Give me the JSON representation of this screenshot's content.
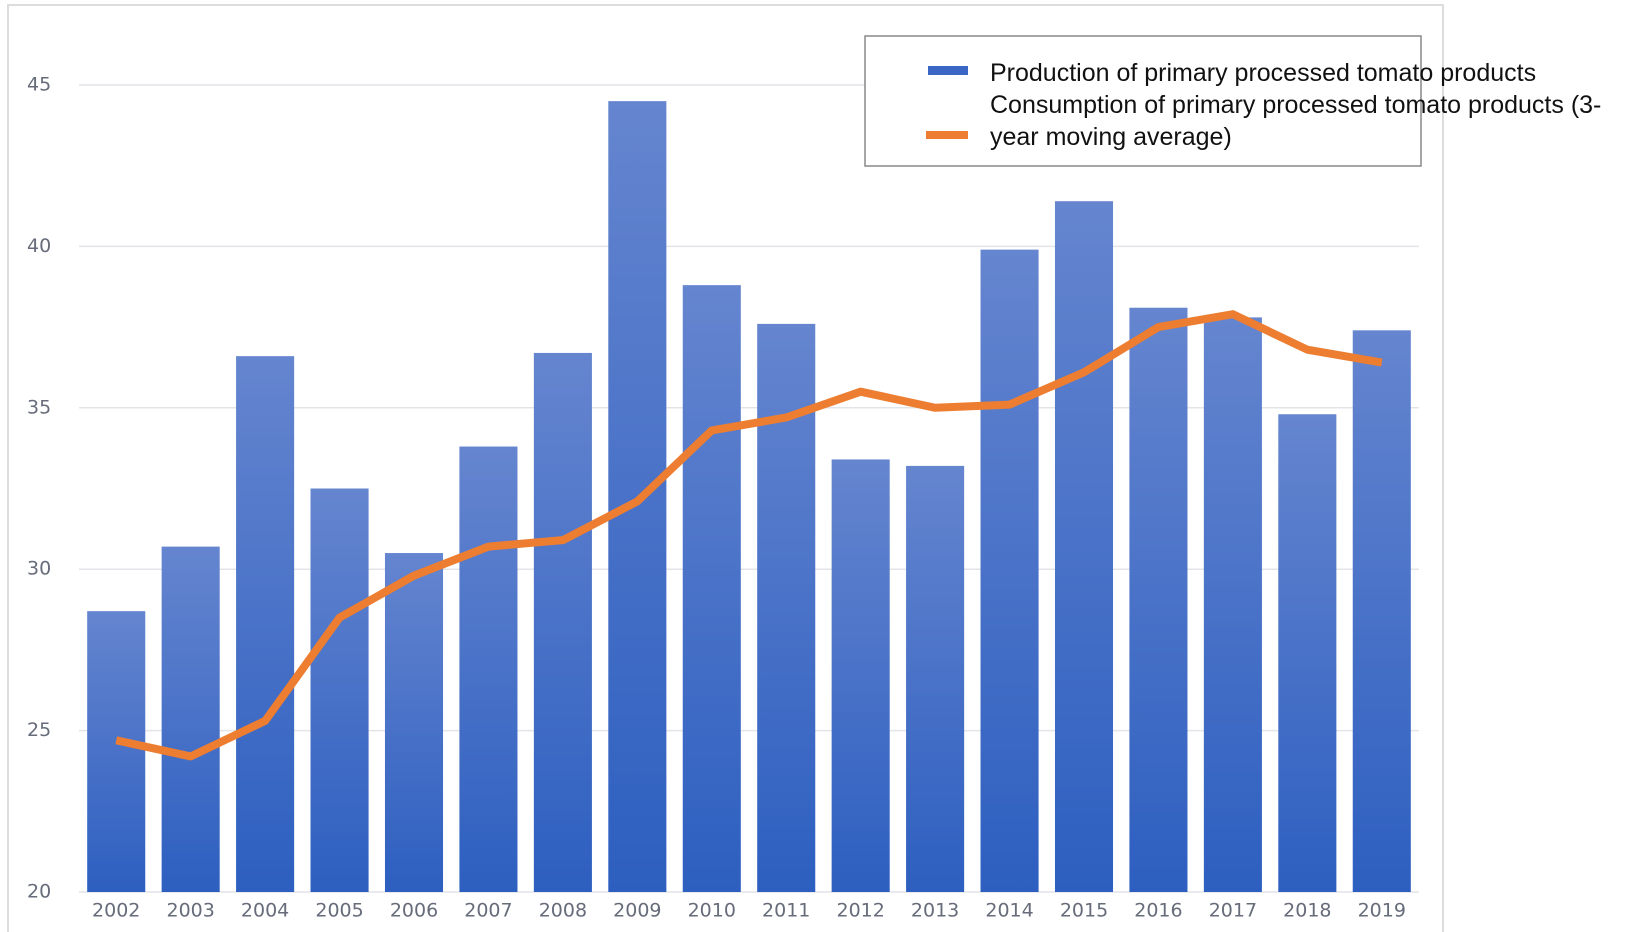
{
  "chart_data": {
    "type": "bar",
    "categories": [
      "2002",
      "2003",
      "2004",
      "2005",
      "2006",
      "2007",
      "2008",
      "2009",
      "2010",
      "2011",
      "2012",
      "2013",
      "2014",
      "2015",
      "2016",
      "2017",
      "2018",
      "2019"
    ],
    "series": [
      {
        "name": "Production of primary processed tomato products",
        "type": "bar",
        "color": "#3a66c6",
        "values": [
          28.7,
          30.7,
          36.6,
          32.5,
          30.5,
          33.8,
          36.7,
          44.5,
          38.8,
          37.6,
          33.4,
          33.2,
          39.9,
          41.4,
          38.1,
          37.8,
          34.8,
          37.4
        ]
      },
      {
        "name": "Consumption of primary processed tomato products (3-year moving average)",
        "type": "line",
        "color": "#ed7d31",
        "values": [
          24.7,
          24.2,
          25.3,
          28.5,
          29.8,
          30.7,
          30.9,
          32.1,
          34.3,
          34.7,
          35.5,
          35.0,
          35.1,
          36.1,
          37.5,
          37.9,
          36.8,
          36.4
        ]
      }
    ],
    "ylim": [
      20,
      45
    ],
    "yticks": [
      20,
      25,
      30,
      35,
      40,
      45
    ],
    "grid": true,
    "legend": "top-right"
  }
}
